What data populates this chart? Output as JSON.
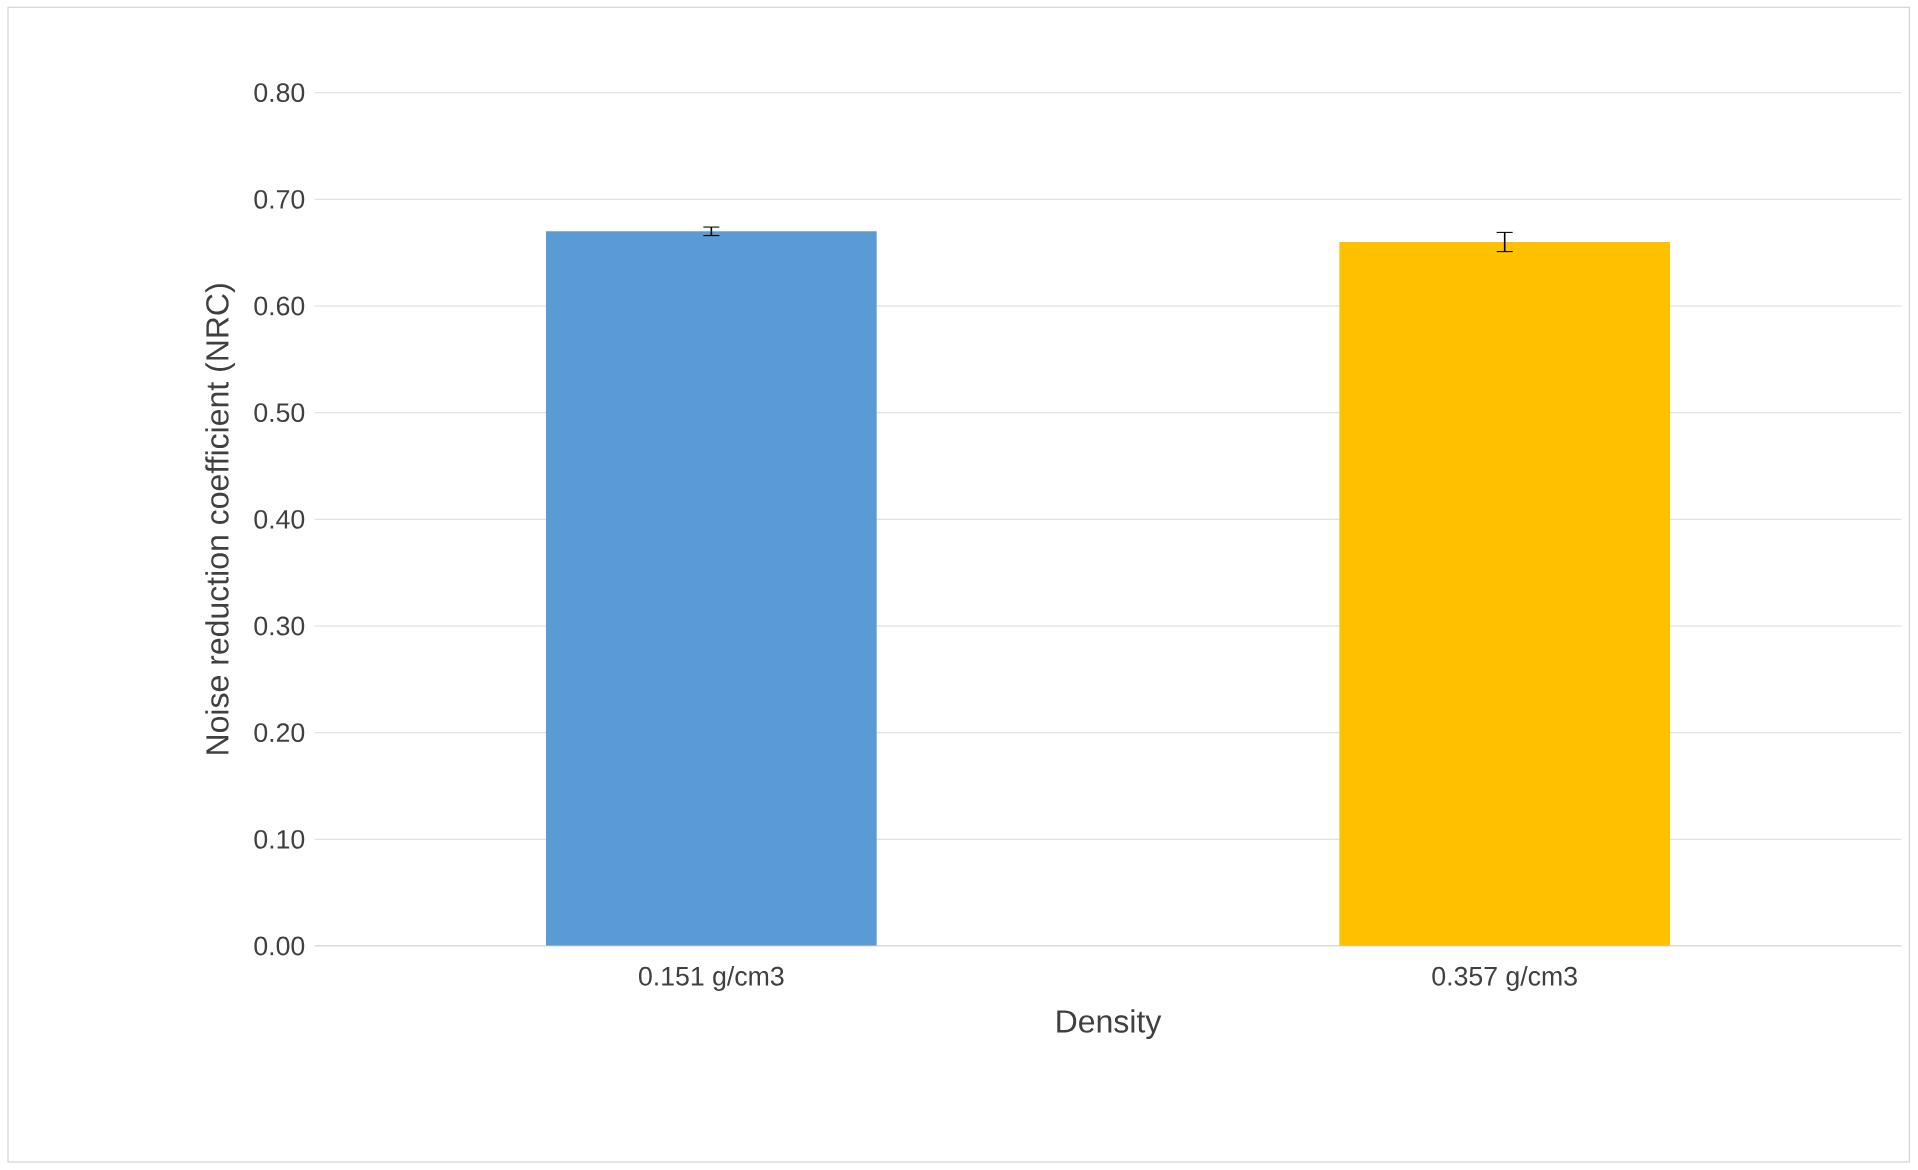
{
  "chart_data": {
    "type": "bar",
    "xlabel": "Density",
    "ylabel": "Noise reduction coefficient (NRC)",
    "categories": [
      "0.151 g/cm3",
      "0.357 g/cm3"
    ],
    "values": [
      0.67,
      0.66
    ],
    "errors": [
      0.004,
      0.009
    ],
    "colors": [
      "#5b9bd5",
      "#ffc000"
    ],
    "ylim": [
      0,
      0.8
    ],
    "yticks": [
      {
        "value": 0,
        "label": "0.00"
      },
      {
        "value": 0.1,
        "label": "0.10"
      },
      {
        "value": 0.2,
        "label": "0.20"
      },
      {
        "value": 0.3,
        "label": "0.30"
      },
      {
        "value": 0.4,
        "label": "0.40"
      },
      {
        "value": 0.5,
        "label": "0.50"
      },
      {
        "value": 0.6,
        "label": "0.60"
      },
      {
        "value": 0.7,
        "label": "0.70"
      },
      {
        "value": 0.8,
        "label": "0.80"
      }
    ],
    "grid": "y"
  }
}
